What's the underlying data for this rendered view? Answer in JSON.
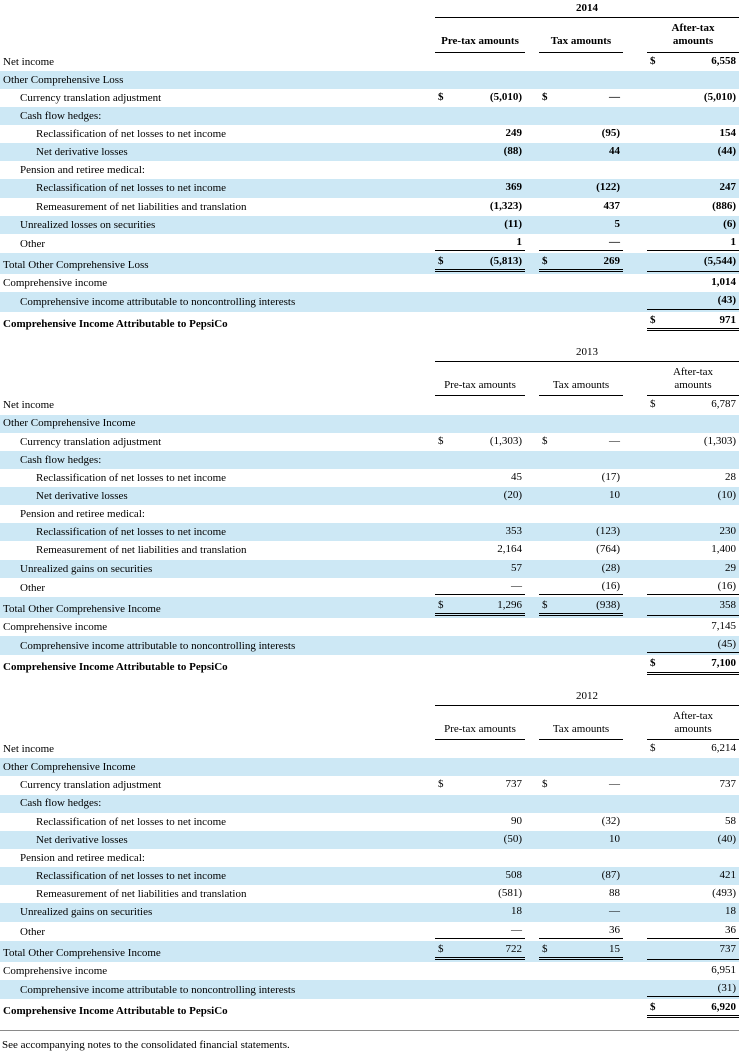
{
  "colors": {
    "row_band": "#cde8f5"
  },
  "columns": [
    "Pre-tax amounts",
    "Tax amounts",
    "After-tax amounts"
  ],
  "footnote": "See accompanying notes to the consolidated financial statements.",
  "tables": [
    {
      "year": "2014",
      "emphasis": true,
      "rows": [
        {
          "label": "Net income",
          "indent": 0,
          "shaded": false,
          "aftertax_currency": "$",
          "aftertax": "6,558"
        },
        {
          "label": "Other Comprehensive Loss",
          "indent": 0,
          "shaded": true
        },
        {
          "label": "Currency translation adjustment",
          "indent": 1,
          "shaded": false,
          "pretax_currency": "$",
          "pretax": "(5,010)",
          "tax_currency": "$",
          "tax": "—",
          "aftertax": "(5,010)"
        },
        {
          "label": "Cash flow hedges:",
          "indent": 1,
          "shaded": true
        },
        {
          "label": "Reclassification of net losses to net income",
          "indent": 2,
          "shaded": false,
          "pretax": "249",
          "tax": "(95)",
          "aftertax": "154"
        },
        {
          "label": "Net derivative losses",
          "indent": 2,
          "shaded": true,
          "pretax": "(88)",
          "tax": "44",
          "aftertax": "(44)"
        },
        {
          "label": "Pension and retiree medical:",
          "indent": 1,
          "shaded": false
        },
        {
          "label": "Reclassification of net losses to net income",
          "indent": 2,
          "shaded": true,
          "pretax": "369",
          "tax": "(122)",
          "aftertax": "247"
        },
        {
          "label": "Remeasurement of net liabilities and translation",
          "indent": 2,
          "shaded": false,
          "pretax": "(1,323)",
          "tax": "437",
          "aftertax": "(886)"
        },
        {
          "label": "Unrealized losses on securities",
          "indent": 1,
          "shaded": true,
          "pretax": "(11)",
          "tax": "5",
          "aftertax": "(6)"
        },
        {
          "label": "Other",
          "indent": 1,
          "shaded": false,
          "pretax": "1",
          "tax": "—",
          "aftertax": "1",
          "rule": "under-all"
        },
        {
          "label": "Total Other Comprehensive Loss",
          "indent": 0,
          "shaded": true,
          "pretax_currency": "$",
          "pretax": "(5,813)",
          "tax_currency": "$",
          "tax": "269",
          "aftertax": "(5,544)",
          "rule": "total"
        },
        {
          "label": "Comprehensive income",
          "indent": 0,
          "shaded": false,
          "aftertax": "1,014"
        },
        {
          "label": "Comprehensive income attributable to noncontrolling interests",
          "indent": 1,
          "shaded": true,
          "aftertax": "(43)",
          "rule": "under-aftertax"
        },
        {
          "label": "Comprehensive Income Attributable to PepsiCo",
          "indent": 0,
          "shaded": false,
          "bold": true,
          "aftertax_currency": "$",
          "aftertax": "971",
          "rule": "grand-total"
        }
      ]
    },
    {
      "year": "2013",
      "emphasis": false,
      "rows": [
        {
          "label": "Net income",
          "indent": 0,
          "shaded": false,
          "aftertax_currency": "$",
          "aftertax": "6,787"
        },
        {
          "label": "Other Comprehensive Income",
          "indent": 0,
          "shaded": true
        },
        {
          "label": "Currency translation adjustment",
          "indent": 1,
          "shaded": false,
          "pretax_currency": "$",
          "pretax": "(1,303)",
          "tax_currency": "$",
          "tax": "—",
          "aftertax": "(1,303)"
        },
        {
          "label": "Cash flow hedges:",
          "indent": 1,
          "shaded": true
        },
        {
          "label": "Reclassification of net losses to net income",
          "indent": 2,
          "shaded": false,
          "pretax": "45",
          "tax": "(17)",
          "aftertax": "28"
        },
        {
          "label": "Net derivative losses",
          "indent": 2,
          "shaded": true,
          "pretax": "(20)",
          "tax": "10",
          "aftertax": "(10)"
        },
        {
          "label": "Pension and retiree medical:",
          "indent": 1,
          "shaded": false
        },
        {
          "label": "Reclassification of net losses to net income",
          "indent": 2,
          "shaded": true,
          "pretax": "353",
          "tax": "(123)",
          "aftertax": "230"
        },
        {
          "label": "Remeasurement of net liabilities and translation",
          "indent": 2,
          "shaded": false,
          "pretax": "2,164",
          "tax": "(764)",
          "aftertax": "1,400"
        },
        {
          "label": "Unrealized gains on securities",
          "indent": 1,
          "shaded": true,
          "pretax": "57",
          "tax": "(28)",
          "aftertax": "29"
        },
        {
          "label": "Other",
          "indent": 1,
          "shaded": false,
          "pretax": "—",
          "tax": "(16)",
          "aftertax": "(16)",
          "rule": "under-all"
        },
        {
          "label": "Total Other Comprehensive Income",
          "indent": 0,
          "shaded": true,
          "pretax_currency": "$",
          "pretax": "1,296",
          "tax_currency": "$",
          "tax": "(938)",
          "aftertax": "358",
          "rule": "total"
        },
        {
          "label": "Comprehensive income",
          "indent": 0,
          "shaded": false,
          "aftertax": "7,145"
        },
        {
          "label": "Comprehensive income attributable to noncontrolling interests",
          "indent": 1,
          "shaded": true,
          "aftertax": "(45)",
          "rule": "under-aftertax"
        },
        {
          "label": "Comprehensive Income Attributable to PepsiCo",
          "indent": 0,
          "shaded": false,
          "bold": true,
          "aftertax_currency": "$",
          "aftertax": "7,100",
          "rule": "grand-total"
        }
      ]
    },
    {
      "year": "2012",
      "emphasis": false,
      "rows": [
        {
          "label": "Net income",
          "indent": 0,
          "shaded": false,
          "aftertax_currency": "$",
          "aftertax": "6,214"
        },
        {
          "label": "Other Comprehensive Income",
          "indent": 0,
          "shaded": true
        },
        {
          "label": "Currency translation adjustment",
          "indent": 1,
          "shaded": false,
          "pretax_currency": "$",
          "pretax": "737",
          "tax_currency": "$",
          "tax": "—",
          "aftertax": "737"
        },
        {
          "label": "Cash flow hedges:",
          "indent": 1,
          "shaded": true
        },
        {
          "label": "Reclassification of net losses to net income",
          "indent": 2,
          "shaded": false,
          "pretax": "90",
          "tax": "(32)",
          "aftertax": "58"
        },
        {
          "label": "Net derivative losses",
          "indent": 2,
          "shaded": true,
          "pretax": "(50)",
          "tax": "10",
          "aftertax": "(40)"
        },
        {
          "label": "Pension and retiree medical:",
          "indent": 1,
          "shaded": false
        },
        {
          "label": "Reclassification of net losses to net income",
          "indent": 2,
          "shaded": true,
          "pretax": "508",
          "tax": "(87)",
          "aftertax": "421"
        },
        {
          "label": "Remeasurement of net liabilities and translation",
          "indent": 2,
          "shaded": false,
          "pretax": "(581)",
          "tax": "88",
          "aftertax": "(493)"
        },
        {
          "label": "Unrealized gains on securities",
          "indent": 1,
          "shaded": true,
          "pretax": "18",
          "tax": "—",
          "aftertax": "18"
        },
        {
          "label": "Other",
          "indent": 1,
          "shaded": false,
          "pretax": "—",
          "tax": "36",
          "aftertax": "36",
          "rule": "under-all"
        },
        {
          "label": "Total Other Comprehensive Income",
          "indent": 0,
          "shaded": true,
          "pretax_currency": "$",
          "pretax": "722",
          "tax_currency": "$",
          "tax": "15",
          "aftertax": "737",
          "rule": "total"
        },
        {
          "label": "Comprehensive income",
          "indent": 0,
          "shaded": false,
          "aftertax": "6,951"
        },
        {
          "label": "Comprehensive income attributable to noncontrolling interests",
          "indent": 1,
          "shaded": true,
          "aftertax": "(31)",
          "rule": "under-aftertax"
        },
        {
          "label": "Comprehensive Income Attributable to PepsiCo",
          "indent": 0,
          "shaded": false,
          "bold": true,
          "aftertax_currency": "$",
          "aftertax": "6,920",
          "rule": "grand-total"
        }
      ]
    }
  ]
}
